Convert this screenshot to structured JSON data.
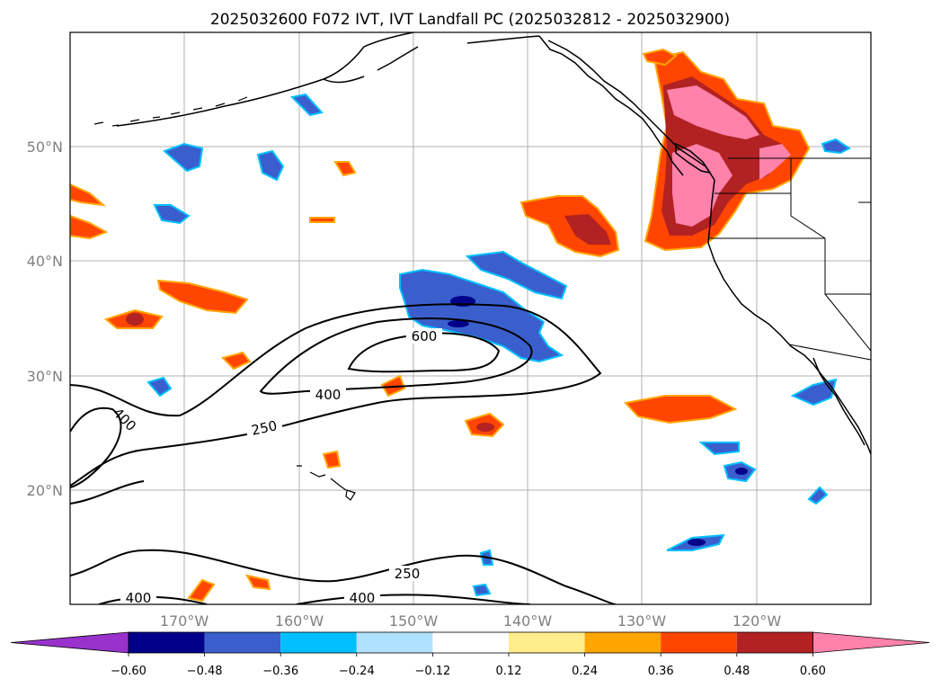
{
  "title": "2025032600 F072 IVT, IVT Landfall PC (2025032812 - 2025032900)",
  "axes": {
    "lat_labels": [
      "50°N",
      "40°N",
      "30°N",
      "20°N"
    ],
    "lon_labels": [
      "170°W",
      "160°W",
      "150°W",
      "140°W",
      "130°W",
      "120°W"
    ]
  },
  "ivt_contour_labels": [
    "600",
    "400",
    "400",
    "250",
    "250",
    "400",
    "400"
  ],
  "colorbar": {
    "ticks": [
      "−0.60",
      "−0.48",
      "−0.36",
      "−0.24",
      "−0.12",
      "0.12",
      "0.24",
      "0.36",
      "0.48",
      "0.60"
    ],
    "colors": [
      "#9932cc",
      "#00008b",
      "#3a5fcd",
      "#00bfff",
      "#b0e2ff",
      "#ffffff",
      "#ffec8b",
      "#ffa500",
      "#ff4500",
      "#b22222",
      "#ff82ab"
    ]
  }
}
